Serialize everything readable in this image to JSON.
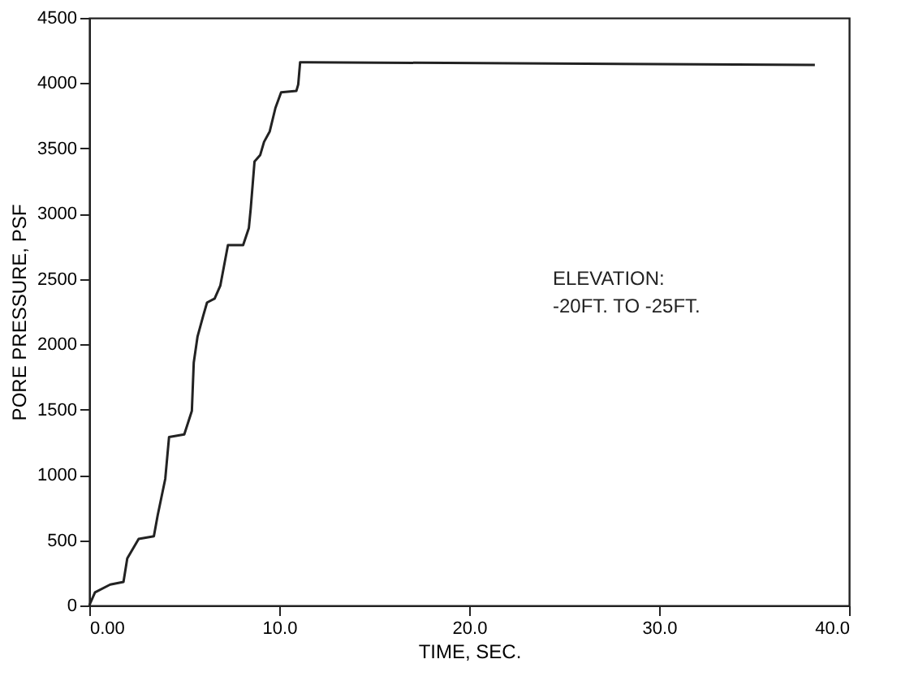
{
  "chart_data": {
    "type": "line",
    "xlabel": "TIME, SEC.",
    "ylabel": "PORE PRESSURE, PSF",
    "annotations": [
      "ELEVATION:",
      "-20FT. TO -25FT."
    ],
    "xlim": [
      0,
      40
    ],
    "xticks": [
      {
        "value": 0,
        "label": "0.00"
      },
      {
        "value": 10,
        "label": "10.0"
      },
      {
        "value": 20,
        "label": "20.0"
      },
      {
        "value": 30,
        "label": "30.0"
      },
      {
        "value": 40,
        "label": "40.0"
      }
    ],
    "ylim": [
      0,
      4500
    ],
    "yticks": [
      0,
      500,
      1000,
      1500,
      2000,
      2500,
      3000,
      3500,
      4000,
      4500
    ],
    "grid": false,
    "marker": "none",
    "line_style": "solid",
    "series": [
      {
        "color": "#222222",
        "x": [
          0,
          0.3,
          1.1,
          1.8,
          2.0,
          2.6,
          3.4,
          3.6,
          4.0,
          4.2,
          5.0,
          5.4,
          5.5,
          5.7,
          6.0,
          6.2,
          6.6,
          6.9,
          7.3,
          8.1,
          8.4,
          8.5,
          8.7,
          9.0,
          9.2,
          9.5,
          9.8,
          10.1,
          10.9,
          11.0,
          11.1,
          11.5,
          38.2
        ],
        "values": [
          0,
          100,
          160,
          180,
          360,
          510,
          530,
          690,
          970,
          1290,
          1310,
          1490,
          1860,
          2060,
          2220,
          2320,
          2350,
          2450,
          2760,
          2760,
          2890,
          3040,
          3400,
          3450,
          3550,
          3630,
          3810,
          3930,
          3940,
          3990,
          4160,
          4160,
          4140
        ]
      }
    ]
  }
}
